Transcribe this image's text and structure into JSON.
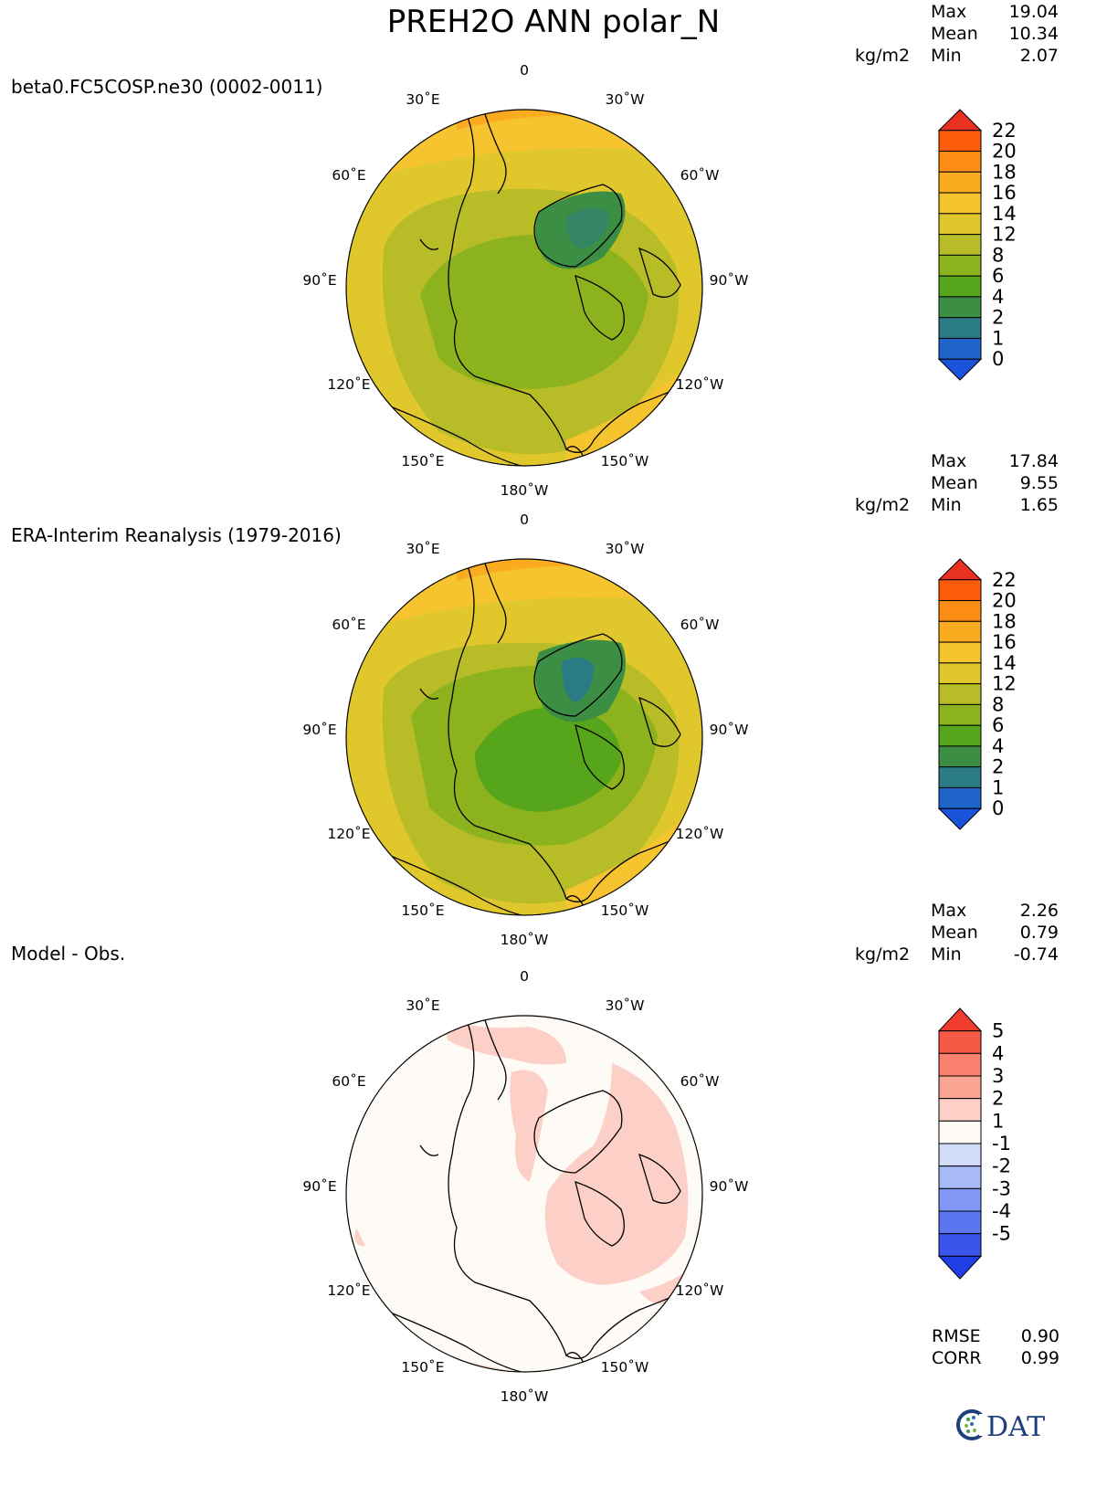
{
  "figure": {
    "title": "PREH2O ANN polar_N",
    "units": "kg/m2",
    "logo_text": "DAT"
  },
  "panels": [
    {
      "label": "beta0.FC5COSP.ne30 (0002-0011)",
      "stats": {
        "max_label": "Max",
        "max": "19.04",
        "mean_label": "Mean",
        "mean": "10.34",
        "min_label": "Min",
        "min": "2.07"
      },
      "colorbar": {
        "labels": [
          "22",
          "20",
          "18",
          "16",
          "14",
          "12",
          "8",
          "6",
          "4",
          "2",
          "1",
          "0"
        ],
        "colors": [
          "#e8321f",
          "#fa5c0a",
          "#fb8c14",
          "#fbab1f",
          "#f6c42e",
          "#e0c82c",
          "#b8bd27",
          "#8cb21e",
          "#57a51a",
          "#3d8e45",
          "#2a7b86",
          "#1f64c8",
          "#1853d9"
        ]
      }
    },
    {
      "label": "ERA-Interim Reanalysis (1979-2016)",
      "stats": {
        "max_label": "Max",
        "max": "17.84",
        "mean_label": "Mean",
        "mean": "9.55",
        "min_label": "Min",
        "min": "1.65"
      },
      "colorbar": {
        "labels": [
          "22",
          "20",
          "18",
          "16",
          "14",
          "12",
          "8",
          "6",
          "4",
          "2",
          "1",
          "0"
        ],
        "colors": [
          "#e8321f",
          "#fa5c0a",
          "#fb8c14",
          "#fbab1f",
          "#f6c42e",
          "#e0c82c",
          "#b8bd27",
          "#8cb21e",
          "#57a51a",
          "#3d8e45",
          "#2a7b86",
          "#1f64c8",
          "#1853d9"
        ]
      }
    },
    {
      "label": "Model - Obs.",
      "stats": {
        "max_label": "Max",
        "max": "2.26",
        "mean_label": "Mean",
        "mean": "0.79",
        "min_label": "Min",
        "min": "-0.74"
      },
      "colorbar": {
        "labels": [
          "5",
          "4",
          "3",
          "2",
          "1",
          "-1",
          "-2",
          "-3",
          "-4",
          "-5"
        ],
        "colors": [
          "#f03c2d",
          "#f45a45",
          "#f8806c",
          "#faa594",
          "#fcd0c6",
          "#fefaf6",
          "#d0dcf8",
          "#a8baf6",
          "#8098f3",
          "#5b76ef",
          "#3b55ec",
          "#1f3ee6"
        ]
      },
      "metrics": {
        "rmse_label": "RMSE",
        "rmse": "0.90",
        "corr_label": "CORR",
        "corr": "0.99"
      }
    }
  ],
  "longitude_labels": {
    "top": "0",
    "upper_left_1": "30˚E",
    "upper_right_1": "30˚W",
    "upper_left_2": "60˚E",
    "upper_right_2": "60˚W",
    "left": "90˚E",
    "right": "90˚W",
    "lower_left_2": "120˚E",
    "lower_right_2": "120˚W",
    "lower_left_1": "150˚E",
    "lower_right_1": "150˚W",
    "bottom": "180˚W"
  }
}
